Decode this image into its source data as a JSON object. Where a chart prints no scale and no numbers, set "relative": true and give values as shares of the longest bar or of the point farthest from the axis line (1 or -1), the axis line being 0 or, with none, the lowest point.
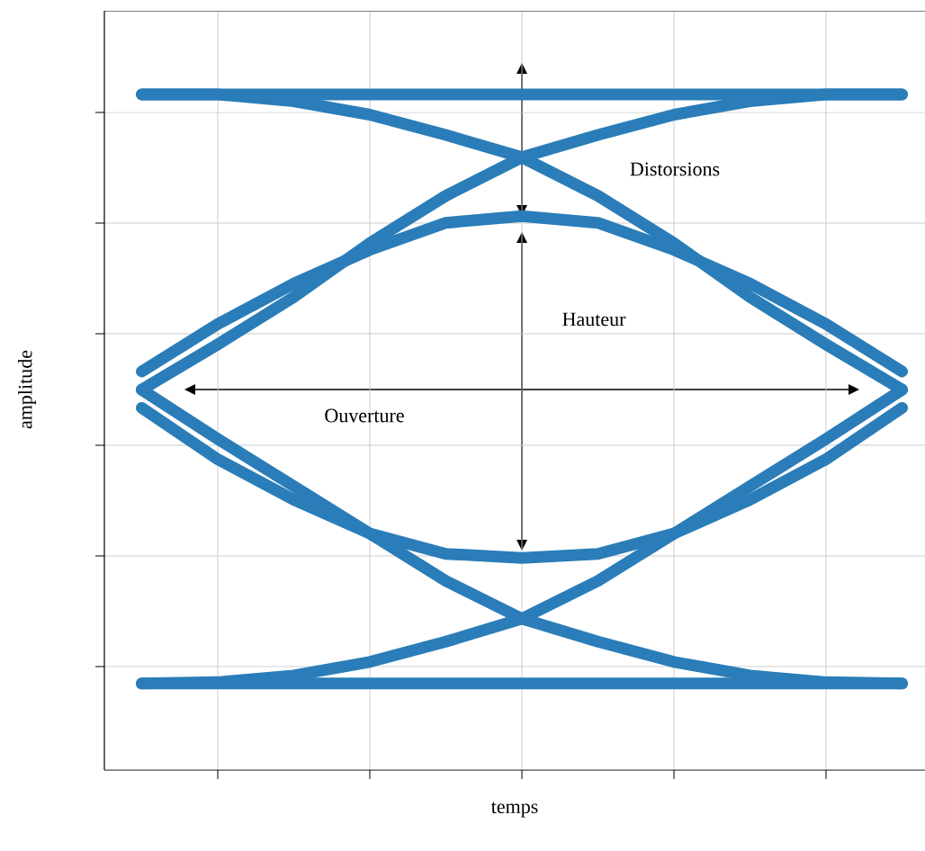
{
  "chart_data": {
    "type": "line",
    "relative": true,
    "xlabel": "temps",
    "ylabel": "amplitude",
    "categories": [
      null,
      null,
      null,
      null,
      null,
      null,
      null,
      null,
      null,
      null,
      null
    ],
    "series": [
      {
        "color": "#2a7db8",
        "values": [
          1.0,
          1.0,
          1.0,
          1.0,
          1.0,
          1.0,
          1.0,
          1.0,
          1.0,
          1.0,
          1.0
        ]
      },
      {
        "color": "#2a7db8",
        "values": [
          0.128,
          0.128,
          0.128,
          0.128,
          0.128,
          0.128,
          0.128,
          0.128,
          0.128,
          0.128,
          0.128
        ]
      },
      {
        "color": "#2a7db8",
        "values": [
          1.0,
          1.0,
          0.99,
          0.97,
          0.94,
          0.907,
          0.85,
          0.78,
          0.7,
          0.63,
          0.563
        ]
      },
      {
        "color": "#2a7db8",
        "values": [
          0.563,
          0.63,
          0.7,
          0.78,
          0.85,
          0.907,
          0.94,
          0.97,
          0.99,
          1.0,
          1.0
        ]
      },
      {
        "color": "#2a7db8",
        "values": [
          0.59,
          0.66,
          0.72,
          0.77,
          0.81,
          0.82,
          0.81,
          0.77,
          0.72,
          0.66,
          0.59
        ]
      },
      {
        "color": "#2a7db8",
        "values": [
          0.128,
          0.13,
          0.14,
          0.16,
          0.19,
          0.224,
          0.28,
          0.35,
          0.42,
          0.49,
          0.563
        ]
      },
      {
        "color": "#2a7db8",
        "values": [
          0.563,
          0.49,
          0.42,
          0.35,
          0.28,
          0.224,
          0.19,
          0.16,
          0.14,
          0.13,
          0.128
        ]
      },
      {
        "color": "#2a7db8",
        "values": [
          0.536,
          0.46,
          0.4,
          0.35,
          0.32,
          0.314,
          0.32,
          0.35,
          0.4,
          0.46,
          0.536
        ]
      }
    ],
    "annotations": [
      "Distorsions",
      "Hauteur",
      "Ouverture"
    ],
    "grid": true,
    "marker": "none",
    "line_style": "solid"
  }
}
